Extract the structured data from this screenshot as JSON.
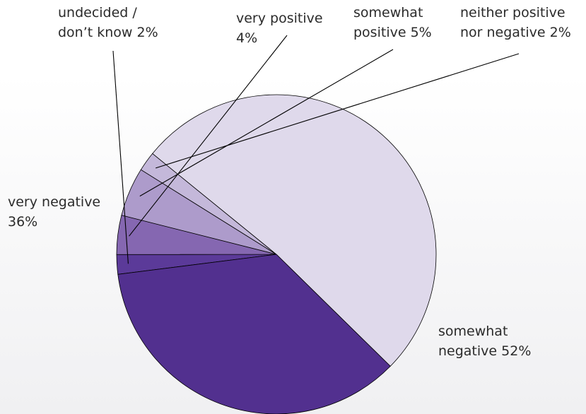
{
  "chart_data": {
    "type": "pie",
    "slices": [
      {
        "label": "undecided /\ndon’t know 2%",
        "name": "undecided / don’t know",
        "value": 2,
        "color": "#5b3a99"
      },
      {
        "label": "very positive\n4%",
        "name": "very positive",
        "value": 4,
        "color": "#8567b1"
      },
      {
        "label": "somewhat\npositive 5%",
        "name": "somewhat positive",
        "value": 5,
        "color": "#ad9bcb"
      },
      {
        "label": "neither positive\nnor negative 2%",
        "name": "neither positive nor negative",
        "value": 2,
        "color": "#c4b8da"
      },
      {
        "label": "somewhat\nnegative 52%",
        "name": "somewhat negative",
        "value": 52,
        "color": "#dfd9eb"
      },
      {
        "label": "very negative\n36%",
        "name": "very negative",
        "value": 36,
        "color": "#52308f"
      }
    ],
    "title": "",
    "legend": "none"
  }
}
